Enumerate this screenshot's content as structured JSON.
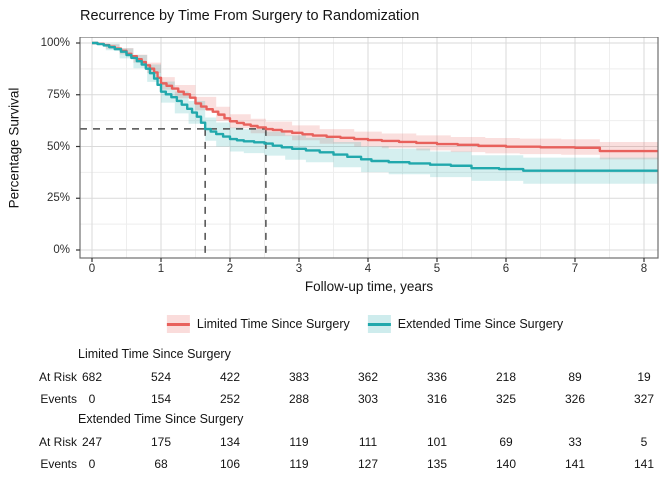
{
  "title": "Recurrence by Time From Surgery to Randomization",
  "axes": {
    "x_label": "Follow-up time, years",
    "y_label": "Percentage Survival",
    "x_ticks": [
      0,
      1,
      2,
      3,
      4,
      5,
      6,
      7,
      8
    ],
    "y_ticks": [
      {
        "v": 0,
        "label": "0%"
      },
      {
        "v": 25,
        "label": "25%"
      },
      {
        "v": 50,
        "label": "50%"
      },
      {
        "v": 75,
        "label": "75%"
      },
      {
        "v": 100,
        "label": "100%"
      }
    ]
  },
  "colors": {
    "limited_line": "#E8615C",
    "limited_band": "#E8615C",
    "extended_line": "#21A8AC",
    "extended_band": "#21A8AC",
    "grid_major": "#DADADA",
    "grid_minor": "#EEEEEE",
    "panel_border": "#6E6E6E",
    "reference_dash": "#4D4D4D",
    "tick_mark": "#333333"
  },
  "legend": {
    "items": [
      {
        "label": "Limited Time Since Surgery"
      },
      {
        "label": "Extended Time Since Surgery"
      }
    ]
  },
  "chart_data": {
    "type": "line",
    "subtype": "kaplan-meier-step",
    "title": "Recurrence by Time From Surgery to Randomization",
    "xlabel": "Follow-up time, years",
    "ylabel": "Percentage Survival",
    "xlim": [
      -0.17,
      8.25
    ],
    "ylim": [
      -4,
      103
    ],
    "grid": true,
    "legend_position": "bottom",
    "reference_lines": {
      "survival_pct": 58.5,
      "crossing_years": [
        1.64,
        2.52
      ]
    },
    "series": [
      {
        "name": "Limited Time Since Surgery",
        "steps": [
          [
            0,
            100
          ],
          [
            0.08,
            99.6
          ],
          [
            0.17,
            99
          ],
          [
            0.25,
            98.2
          ],
          [
            0.33,
            97.3
          ],
          [
            0.42,
            96.2
          ],
          [
            0.5,
            94.8
          ],
          [
            0.57,
            93.6
          ],
          [
            0.65,
            92.2
          ],
          [
            0.72,
            90.8
          ],
          [
            0.78,
            89.2
          ],
          [
            0.84,
            87.6
          ],
          [
            0.9,
            85.8
          ],
          [
            0.95,
            83.2
          ],
          [
            1,
            80.5
          ],
          [
            1.08,
            79.3
          ],
          [
            1.16,
            78
          ],
          [
            1.25,
            76.5
          ],
          [
            1.33,
            75.2
          ],
          [
            1.42,
            73.6
          ],
          [
            1.5,
            70.8
          ],
          [
            1.58,
            69.3
          ],
          [
            1.66,
            68
          ],
          [
            1.75,
            66.8
          ],
          [
            1.83,
            65.4
          ],
          [
            1.92,
            63.6
          ],
          [
            2,
            62.2
          ],
          [
            2.1,
            61.4
          ],
          [
            2.2,
            60.6
          ],
          [
            2.3,
            59.9
          ],
          [
            2.4,
            59.2
          ],
          [
            2.52,
            58.4
          ],
          [
            2.62,
            58
          ],
          [
            2.75,
            57.3
          ],
          [
            2.9,
            56.6
          ],
          [
            3.05,
            55.9
          ],
          [
            3.2,
            55.3
          ],
          [
            3.4,
            54.7
          ],
          [
            3.6,
            54.2
          ],
          [
            3.8,
            53.6
          ],
          [
            4,
            53.1
          ],
          [
            4.2,
            52.7
          ],
          [
            4.45,
            52.2
          ],
          [
            4.7,
            51.7
          ],
          [
            5,
            51.2
          ],
          [
            5.3,
            50.8
          ],
          [
            5.6,
            50.3
          ],
          [
            6,
            49.9
          ],
          [
            6.5,
            49.6
          ],
          [
            7,
            49.4
          ],
          [
            7.36,
            47.8
          ],
          [
            8.2,
            47.8
          ]
        ],
        "band": [
          [
            0,
            100,
            100
          ],
          [
            0.2,
            97.2,
            99.4
          ],
          [
            0.4,
            94.5,
            97.6
          ],
          [
            0.6,
            90.5,
            94.4
          ],
          [
            0.8,
            85.5,
            90.5
          ],
          [
            1,
            77.5,
            83.5
          ],
          [
            1.2,
            73.3,
            79.7
          ],
          [
            1.5,
            67.5,
            74
          ],
          [
            1.8,
            62.3,
            69.2
          ],
          [
            2,
            58.8,
            65.6
          ],
          [
            2.3,
            56.4,
            63.4
          ],
          [
            2.52,
            55,
            62
          ],
          [
            2.9,
            53,
            60.2
          ],
          [
            3.3,
            51.3,
            58.4
          ],
          [
            3.8,
            50,
            57.2
          ],
          [
            4.2,
            49.2,
            56.3
          ],
          [
            4.7,
            48.1,
            55.4
          ],
          [
            5.2,
            47.3,
            54.6
          ],
          [
            5.7,
            46.7,
            54.1
          ],
          [
            6.2,
            46.3,
            53.8
          ],
          [
            6.8,
            46,
            53.5
          ],
          [
            7.36,
            43.8,
            52.2
          ],
          [
            8.2,
            43.8,
            52.2
          ]
        ]
      },
      {
        "name": "Extended Time Since Surgery",
        "steps": [
          [
            0,
            100
          ],
          [
            0.08,
            99.5
          ],
          [
            0.17,
            98.8
          ],
          [
            0.25,
            98
          ],
          [
            0.33,
            97
          ],
          [
            0.42,
            95.8
          ],
          [
            0.5,
            94.2
          ],
          [
            0.57,
            92.8
          ],
          [
            0.65,
            91.2
          ],
          [
            0.72,
            89.6
          ],
          [
            0.78,
            87.6
          ],
          [
            0.84,
            85.4
          ],
          [
            0.9,
            82.8
          ],
          [
            0.95,
            79.8
          ],
          [
            1,
            76.5
          ],
          [
            1.07,
            75.2
          ],
          [
            1.15,
            73.8
          ],
          [
            1.23,
            72
          ],
          [
            1.3,
            70.2
          ],
          [
            1.38,
            68.2
          ],
          [
            1.45,
            66.4
          ],
          [
            1.52,
            64.4
          ],
          [
            1.58,
            61.5
          ],
          [
            1.64,
            58.4
          ],
          [
            1.72,
            57.2
          ],
          [
            1.8,
            56
          ],
          [
            1.9,
            54.8
          ],
          [
            2,
            53.6
          ],
          [
            2.1,
            53
          ],
          [
            2.2,
            52.5
          ],
          [
            2.35,
            52
          ],
          [
            2.5,
            51.4
          ],
          [
            2.62,
            50.4
          ],
          [
            2.75,
            49.6
          ],
          [
            2.9,
            48.9
          ],
          [
            3.1,
            48.1
          ],
          [
            3.3,
            47.2
          ],
          [
            3.5,
            46.1
          ],
          [
            3.7,
            45
          ],
          [
            3.9,
            43.8
          ],
          [
            4.05,
            43
          ],
          [
            4.3,
            42.4
          ],
          [
            4.6,
            41.8
          ],
          [
            4.9,
            41.2
          ],
          [
            5.2,
            40.7
          ],
          [
            5.5,
            39.5
          ],
          [
            5.9,
            39.1
          ],
          [
            6.25,
            38.3
          ],
          [
            8.2,
            38.3
          ]
        ],
        "band": [
          [
            0,
            100,
            100
          ],
          [
            0.2,
            96.5,
            99.6
          ],
          [
            0.4,
            92.6,
            97.4
          ],
          [
            0.6,
            87.8,
            94.2
          ],
          [
            0.8,
            81.2,
            89.6
          ],
          [
            1,
            71.2,
            81.4
          ],
          [
            1.2,
            66,
            76.6
          ],
          [
            1.4,
            61,
            72
          ],
          [
            1.64,
            52.8,
            64
          ],
          [
            1.8,
            50,
            61.6
          ],
          [
            2,
            47.6,
            59.2
          ],
          [
            2.2,
            46.8,
            58.4
          ],
          [
            2.5,
            45.6,
            57.2
          ],
          [
            2.8,
            43.6,
            55.4
          ],
          [
            3.1,
            42.4,
            54.2
          ],
          [
            3.5,
            40,
            52.2
          ],
          [
            3.9,
            37.6,
            50
          ],
          [
            4.3,
            36.6,
            49
          ],
          [
            4.9,
            35.2,
            47.6
          ],
          [
            5.5,
            33.4,
            45.8
          ],
          [
            6.25,
            32,
            44.6
          ],
          [
            8.2,
            32,
            44.6
          ]
        ]
      }
    ]
  },
  "risk_table": {
    "time_points": [
      0,
      1,
      2,
      3,
      4,
      5,
      6,
      7,
      8
    ],
    "groups": [
      {
        "name": "Limited Time Since Surgery",
        "at_risk_label": "At Risk",
        "events_label": "Events",
        "at_risk": [
          682,
          524,
          422,
          383,
          362,
          336,
          218,
          89,
          19
        ],
        "events": [
          0,
          154,
          252,
          288,
          303,
          316,
          325,
          326,
          327
        ]
      },
      {
        "name": "Extended Time Since Surgery",
        "at_risk_label": "At Risk",
        "events_label": "Events",
        "at_risk": [
          247,
          175,
          134,
          119,
          111,
          101,
          69,
          33,
          5
        ],
        "events": [
          0,
          68,
          106,
          119,
          127,
          135,
          140,
          141,
          141
        ]
      }
    ]
  }
}
